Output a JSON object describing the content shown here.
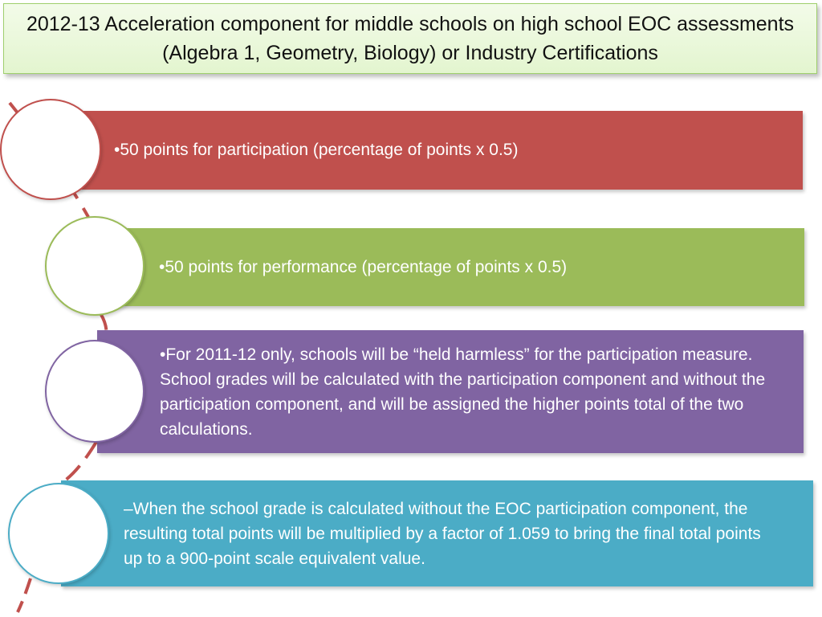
{
  "title": "2012-13 Acceleration component for middle schools on high school EOC assessments (Algebra 1, Geometry, Biology) or Industry Certifications",
  "items": [
    {
      "text": "•50 points for participation (percentage of points x 0.5)",
      "color": "#c0504d"
    },
    {
      "text": "•50 points for performance (percentage of points x 0.5)",
      "color": "#9bbb59"
    },
    {
      "text": "•For 2011-12 only, schools will be “held harmless” for the participation measure. School grades will be calculated with the participation component and without the participation component, and will be assigned the higher points total of the two calculations.",
      "color": "#8064a2"
    },
    {
      "text": "–When the school grade is calculated without the EOC participation component, the resulting total points will be multiplied by a factor of 1.059 to bring the final total points up to a 900-point scale equivalent value.",
      "color": "#4bacc6"
    }
  ],
  "connector_color": "#c0504d"
}
